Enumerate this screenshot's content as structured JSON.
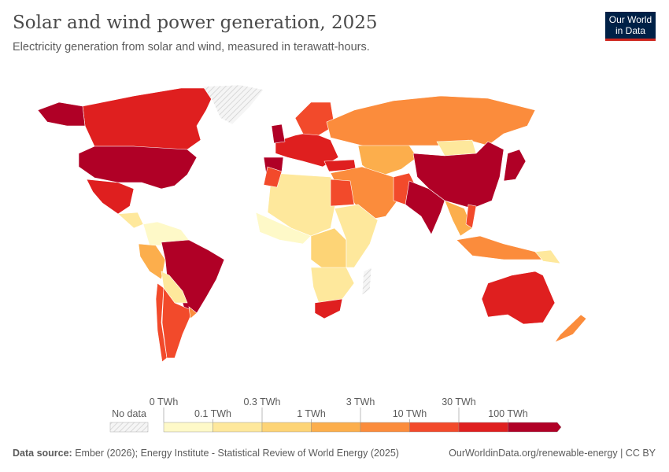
{
  "header": {
    "title": "Solar and wind power generation, 2025",
    "subtitle": "Electricity generation from solar and wind, measured in terawatt-hours.",
    "logo": "Our World in Data"
  },
  "logo_lines": [
    "Our World",
    "in Data"
  ],
  "legend": {
    "no_data": "No data",
    "upper_labels": [
      "0 TWh",
      "0.3 TWh",
      "3 TWh",
      "30 TWh"
    ],
    "lower_labels": [
      "0.1 TWh",
      "1 TWh",
      "10 TWh",
      "100 TWh"
    ],
    "bins": [
      "0–0.1",
      "0.1–0.3",
      "0.3–1",
      "1–3",
      "3–10",
      "10–30",
      "30–100",
      ">100"
    ],
    "colors": [
      "#fef9c8",
      "#fee89c",
      "#fdd476",
      "#fcae4c",
      "#fb8c3c",
      "#f24a2b",
      "#df1f1f",
      "#b00026"
    ]
  },
  "footer": {
    "source_label": "Data source:",
    "source": "Ember (2026); Energy Institute - Statistical Review of World Energy (2025)",
    "link": "OurWorldinData.org/renewable-energy | CC BY"
  },
  "map": {
    "regions": [
      {
        "name": "canada",
        "bin": 6
      },
      {
        "name": "alaska",
        "bin": 7
      },
      {
        "name": "greenland",
        "bin": -1
      },
      {
        "name": "usa",
        "bin": 7
      },
      {
        "name": "mexico",
        "bin": 6
      },
      {
        "name": "central-america",
        "bin": 1
      },
      {
        "name": "colombia-venezuela",
        "bin": 0
      },
      {
        "name": "peru-ecuador",
        "bin": 3
      },
      {
        "name": "brazil",
        "bin": 7
      },
      {
        "name": "bolivia-paraguay",
        "bin": 1
      },
      {
        "name": "chile",
        "bin": 5
      },
      {
        "name": "argentina",
        "bin": 5
      },
      {
        "name": "uruguay",
        "bin": 4
      },
      {
        "name": "western-europe",
        "bin": 6
      },
      {
        "name": "scandinavia",
        "bin": 5
      },
      {
        "name": "uk",
        "bin": 7
      },
      {
        "name": "spain",
        "bin": 7
      },
      {
        "name": "turkey",
        "bin": 6
      },
      {
        "name": "russia",
        "bin": 4
      },
      {
        "name": "kazakhstan-central-asia",
        "bin": 3
      },
      {
        "name": "mongolia",
        "bin": 1
      },
      {
        "name": "china",
        "bin": 7
      },
      {
        "name": "japan",
        "bin": 7
      },
      {
        "name": "middle-east",
        "bin": 4
      },
      {
        "name": "pakistan",
        "bin": 5
      },
      {
        "name": "india",
        "bin": 7
      },
      {
        "name": "southeast-asia",
        "bin": 3
      },
      {
        "name": "vietnam",
        "bin": 5
      },
      {
        "name": "indonesia",
        "bin": 4
      },
      {
        "name": "north-africa",
        "bin": 1
      },
      {
        "name": "morocco",
        "bin": 5
      },
      {
        "name": "egypt",
        "bin": 5
      },
      {
        "name": "west-africa",
        "bin": 0
      },
      {
        "name": "central-africa",
        "bin": 2
      },
      {
        "name": "east-africa",
        "bin": 1
      },
      {
        "name": "southern-africa",
        "bin": 1
      },
      {
        "name": "south-africa",
        "bin": 6
      },
      {
        "name": "madagascar",
        "bin": -1
      },
      {
        "name": "australia",
        "bin": 6
      },
      {
        "name": "new-zealand",
        "bin": 4
      },
      {
        "name": "papua-new-guinea",
        "bin": 1
      }
    ]
  }
}
